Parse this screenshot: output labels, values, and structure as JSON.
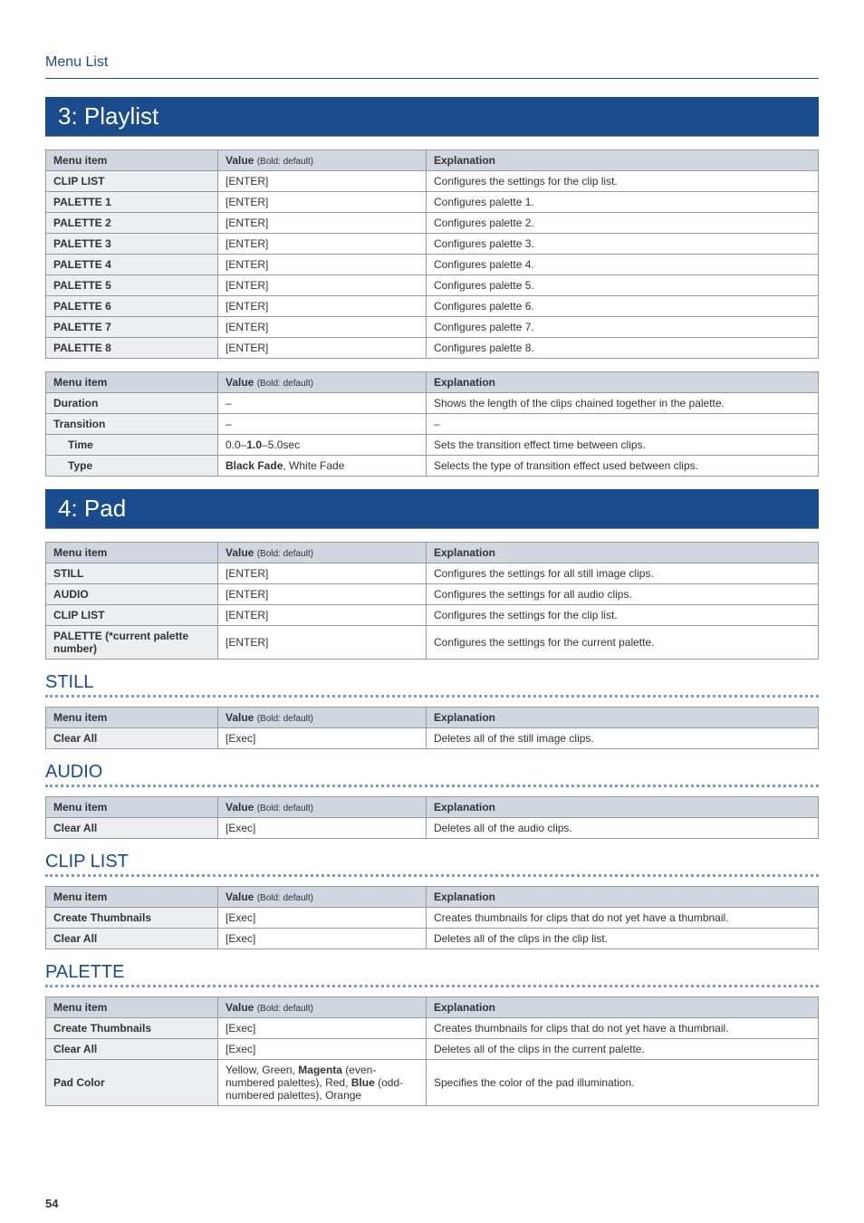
{
  "header": {
    "title": "Menu List"
  },
  "section3": {
    "title": "3: Playlist",
    "table1": {
      "headers": {
        "item": "Menu item",
        "value": "Value",
        "value_note": "(Bold: default)",
        "expl": "Explanation"
      },
      "rows": [
        {
          "item": "CLIP LIST",
          "value": "[ENTER]",
          "expl": "Configures the settings for the clip list."
        },
        {
          "item": "PALETTE 1",
          "value": "[ENTER]",
          "expl": "Configures palette 1."
        },
        {
          "item": "PALETTE 2",
          "value": "[ENTER]",
          "expl": "Configures palette 2."
        },
        {
          "item": "PALETTE 3",
          "value": "[ENTER]",
          "expl": "Configures palette 3."
        },
        {
          "item": "PALETTE 4",
          "value": "[ENTER]",
          "expl": "Configures palette 4."
        },
        {
          "item": "PALETTE 5",
          "value": "[ENTER]",
          "expl": "Configures palette 5."
        },
        {
          "item": "PALETTE 6",
          "value": "[ENTER]",
          "expl": "Configures palette 6."
        },
        {
          "item": "PALETTE 7",
          "value": "[ENTER]",
          "expl": "Configures palette 7."
        },
        {
          "item": "PALETTE 8",
          "value": "[ENTER]",
          "expl": "Configures palette 8."
        }
      ]
    },
    "table2": {
      "headers": {
        "item": "Menu item",
        "value": "Value",
        "value_note": "(Bold: default)",
        "expl": "Explanation"
      },
      "rows": [
        {
          "item": "Duration",
          "value": "–",
          "expl": "Shows the length of the clips chained together in the palette.",
          "indent": false
        },
        {
          "item": "Transition",
          "value": "–",
          "expl": "–",
          "indent": false
        },
        {
          "item": "Time",
          "value_pre": "0.0–",
          "value_bold": "1.0",
          "value_post": "–5.0sec",
          "expl": "Sets the transition effect time between clips.",
          "indent": true
        },
        {
          "item": "Type",
          "value_bold": "Black Fade",
          "value_post": ", White Fade",
          "expl": "Selects the type of transition effect used between clips.",
          "indent": true
        }
      ]
    }
  },
  "section4": {
    "title": "4: Pad",
    "table1": {
      "headers": {
        "item": "Menu item",
        "value": "Value",
        "value_note": "(Bold: default)",
        "expl": "Explanation"
      },
      "rows": [
        {
          "item": "STILL",
          "value": "[ENTER]",
          "expl": "Configures the settings for all still image clips."
        },
        {
          "item": "AUDIO",
          "value": "[ENTER]",
          "expl": "Configures the settings for all audio clips."
        },
        {
          "item": "CLIP LIST",
          "value": "[ENTER]",
          "expl": "Configures the settings for the clip list."
        },
        {
          "item": "PALETTE (*current palette number)",
          "value": "[ENTER]",
          "expl": "Configures the settings for the current palette."
        }
      ]
    },
    "still": {
      "heading": "STILL",
      "headers": {
        "item": "Menu item",
        "value": "Value",
        "value_note": "(Bold: default)",
        "expl": "Explanation"
      },
      "rows": [
        {
          "item": "Clear All",
          "value": "[Exec]",
          "expl": "Deletes all of the still image clips."
        }
      ]
    },
    "audio": {
      "heading": "AUDIO",
      "headers": {
        "item": "Menu item",
        "value": "Value",
        "value_note": "(Bold: default)",
        "expl": "Explanation"
      },
      "rows": [
        {
          "item": "Clear All",
          "value": "[Exec]",
          "expl": "Deletes all of the audio clips."
        }
      ]
    },
    "cliplist": {
      "heading": "CLIP LIST",
      "headers": {
        "item": "Menu item",
        "value": "Value",
        "value_note": "(Bold: default)",
        "expl": "Explanation"
      },
      "rows": [
        {
          "item": "Create Thumbnails",
          "value": "[Exec]",
          "expl": "Creates thumbnails for clips that do not yet have a thumbnail."
        },
        {
          "item": "Clear All",
          "value": "[Exec]",
          "expl": "Deletes all of the clips in the clip list."
        }
      ]
    },
    "palette": {
      "heading": "PALETTE",
      "headers": {
        "item": "Menu item",
        "value": "Value",
        "value_note": "(Bold: default)",
        "expl": "Explanation"
      },
      "rows": [
        {
          "item": "Create Thumbnails",
          "value": "[Exec]",
          "expl": "Creates thumbnails for clips that do not yet have a thumbnail."
        },
        {
          "item": "Clear All",
          "value": "[Exec]",
          "expl": "Deletes all of the clips in the current palette."
        },
        {
          "item": "Pad Color",
          "value_parts": [
            "Yellow, Green, ",
            "Magenta",
            " (even-numbered palettes), Red, ",
            "Blue",
            " (odd-numbered palettes), Orange"
          ],
          "expl": "Specifies the color of the pad illumination."
        }
      ]
    }
  },
  "page_number": "54"
}
